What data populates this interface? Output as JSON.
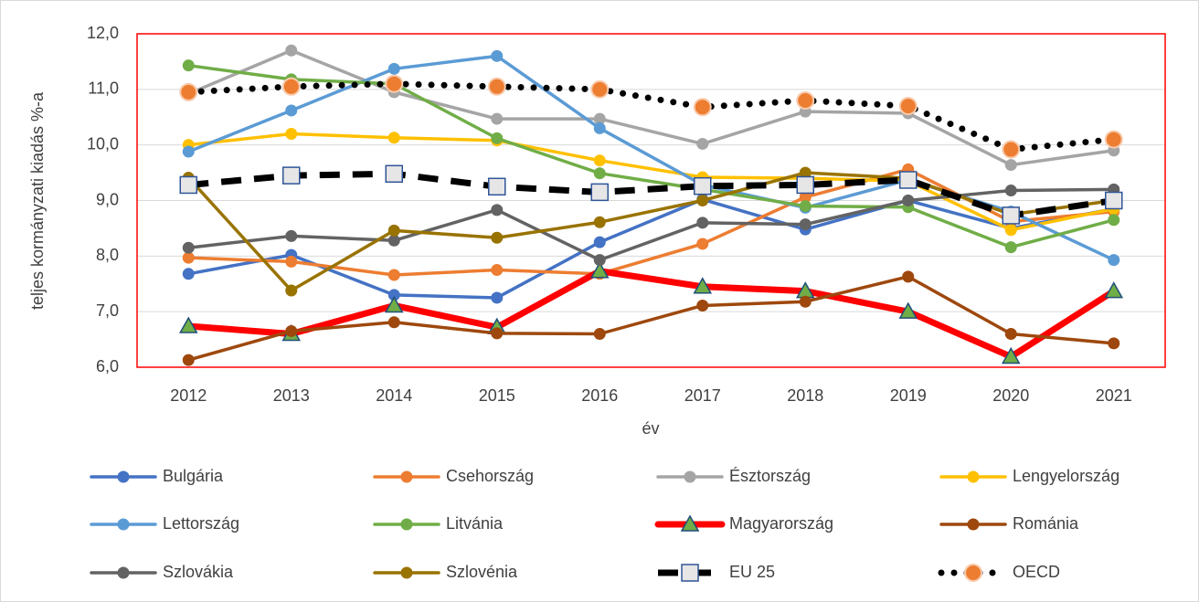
{
  "chart_data": {
    "type": "line",
    "x_label": "év",
    "y_label": "teljes kormányzati kiadás %-a",
    "categories": [
      "2012",
      "2013",
      "2014",
      "2015",
      "2016",
      "2017",
      "2018",
      "2019",
      "2020",
      "2021"
    ],
    "ylim": [
      6,
      12
    ],
    "yticks": [
      {
        "value": 6,
        "label": "6,0"
      },
      {
        "value": 7,
        "label": "7,0"
      },
      {
        "value": 8,
        "label": "8,0"
      },
      {
        "value": 9,
        "label": "9,0"
      },
      {
        "value": 10,
        "label": "10,0"
      },
      {
        "value": 11,
        "label": "11,0"
      },
      {
        "value": 12,
        "label": "12,0"
      }
    ],
    "grid": true,
    "legend": "bottom",
    "series": [
      {
        "name": "Bulgária",
        "color": "#4472c4",
        "marker": "circle",
        "dash": "solid",
        "values": [
          7.68,
          8.02,
          7.3,
          7.25,
          8.25,
          9.02,
          8.48,
          9.0,
          8.5,
          8.85
        ]
      },
      {
        "name": "Csehország",
        "color": "#ed7d31",
        "marker": "circle",
        "dash": "solid",
        "values": [
          7.97,
          7.9,
          7.66,
          7.75,
          7.68,
          8.22,
          9.06,
          9.56,
          8.62,
          8.8
        ]
      },
      {
        "name": "Észtország",
        "color": "#a5a5a5",
        "marker": "circle",
        "dash": "solid",
        "values": [
          10.92,
          11.7,
          10.95,
          10.47,
          10.47,
          10.02,
          10.6,
          10.57,
          9.64,
          9.9
        ]
      },
      {
        "name": "Lengyelország",
        "color": "#ffc000",
        "marker": "circle",
        "dash": "solid",
        "values": [
          10.0,
          10.2,
          10.13,
          10.08,
          9.72,
          9.42,
          9.4,
          9.35,
          8.47,
          8.85
        ]
      },
      {
        "name": "Lettország",
        "color": "#5b9bd5",
        "marker": "circle",
        "dash": "solid",
        "values": [
          9.88,
          10.62,
          11.37,
          11.6,
          10.3,
          9.28,
          8.87,
          9.37,
          8.8,
          7.93
        ]
      },
      {
        "name": "Litvánia",
        "color": "#70ad47",
        "marker": "circle",
        "dash": "solid",
        "values": [
          11.43,
          11.18,
          11.1,
          10.12,
          9.49,
          9.2,
          8.9,
          8.88,
          8.16,
          8.65
        ]
      },
      {
        "name": "Magyarország",
        "color": "#ff0000",
        "marker": "triangle",
        "dash": "solid",
        "line_width": 7,
        "values": [
          6.74,
          6.6,
          7.11,
          6.72,
          7.73,
          7.45,
          7.37,
          7.0,
          6.19,
          7.37
        ]
      },
      {
        "name": "Románia",
        "color": "#9e480e",
        "marker": "circle",
        "dash": "solid",
        "values": [
          6.13,
          6.65,
          6.81,
          6.61,
          6.6,
          7.11,
          7.18,
          7.63,
          6.6,
          6.43
        ]
      },
      {
        "name": "Szlovákia",
        "color": "#636363",
        "marker": "circle",
        "dash": "solid",
        "values": [
          8.15,
          8.36,
          8.28,
          8.83,
          7.93,
          8.6,
          8.57,
          9.0,
          9.18,
          9.2
        ]
      },
      {
        "name": "Szlovénia",
        "color": "#997300",
        "marker": "circle",
        "dash": "solid",
        "values": [
          9.41,
          7.38,
          8.46,
          8.33,
          8.61,
          9.0,
          9.5,
          9.4,
          8.75,
          9.0
        ]
      },
      {
        "name": "EU 25",
        "color": "#000000",
        "marker": "square",
        "dash": "dash",
        "line_width": 7,
        "values": [
          9.28,
          9.45,
          9.48,
          9.25,
          9.15,
          9.26,
          9.28,
          9.37,
          8.73,
          9.0
        ]
      },
      {
        "name": "OECD",
        "color": "#000000",
        "marker": "orange-circle",
        "dash": "dot",
        "line_width": 7,
        "values": [
          10.95,
          11.05,
          11.1,
          11.05,
          11.0,
          10.68,
          10.8,
          10.7,
          9.92,
          10.1
        ]
      }
    ]
  }
}
